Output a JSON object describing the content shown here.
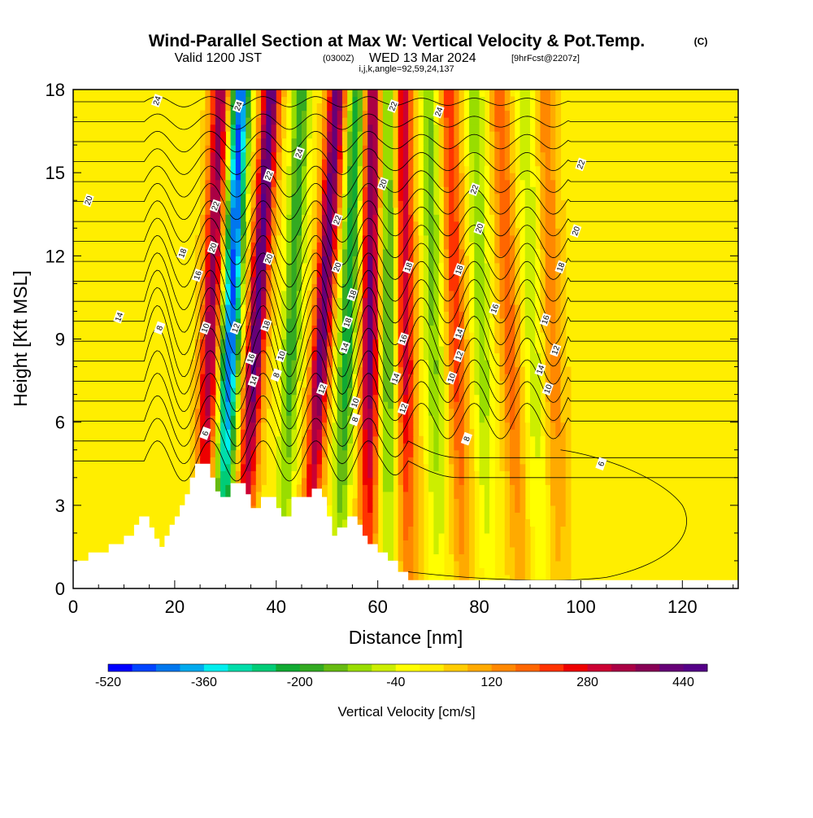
{
  "header": {
    "title": "Wind-Parallel Section at Max W: Vertical Velocity & Pot.Temp.",
    "title_mark": "(C)",
    "valid_prefix": "Valid 1200 JST",
    "valid_utc": "(0300Z)",
    "valid_date": "WED 13 Mar 2024",
    "forecast": "[9hrFcst@2207z]",
    "indices": "i,j,k,angle=92,59,24,137"
  },
  "chart_data": {
    "type": "heatmap",
    "xlabel": "Distance [nm]",
    "ylabel": "Height [Kft MSL]",
    "xlim": [
      0,
      131
    ],
    "ylim": [
      0,
      18
    ],
    "x_ticks": [
      0,
      20,
      40,
      60,
      80,
      100,
      120
    ],
    "y_ticks": [
      0,
      3,
      6,
      9,
      12,
      15,
      18
    ],
    "grid": false,
    "colorbar": {
      "label": "Vertical Velocity [cm/s]",
      "min": -520,
      "max": 480,
      "step": 40,
      "tick_labels": [
        "-520",
        "-360",
        "-200",
        "-40",
        "120",
        "280",
        "440"
      ],
      "colors": [
        "#0000ff",
        "#0044ff",
        "#0077ee",
        "#00aaee",
        "#00eeee",
        "#00ddaa",
        "#00cc77",
        "#11aa33",
        "#33aa22",
        "#66bb11",
        "#99dd00",
        "#ccee00",
        "#ffff00",
        "#ffee00",
        "#ffcc00",
        "#ffaa00",
        "#ff8800",
        "#ff6600",
        "#ff3300",
        "#ee0000",
        "#cc0033",
        "#aa0044",
        "#880055",
        "#660077",
        "#550088"
      ]
    },
    "terrain_kft": [
      [
        0,
        1.0
      ],
      [
        3,
        1.0
      ],
      [
        3,
        1.3
      ],
      [
        7,
        1.3
      ],
      [
        7,
        1.6
      ],
      [
        10,
        1.6
      ],
      [
        10,
        1.9
      ],
      [
        12,
        1.9
      ],
      [
        12,
        2.3
      ],
      [
        13,
        2.3
      ],
      [
        13,
        2.6
      ],
      [
        14,
        2.6
      ],
      [
        15,
        2.6
      ],
      [
        15,
        2.2
      ],
      [
        16,
        2.2
      ],
      [
        16,
        1.8
      ],
      [
        17,
        1.8
      ],
      [
        17,
        1.5
      ],
      [
        18,
        1.5
      ],
      [
        18,
        1.9
      ],
      [
        19,
        1.9
      ],
      [
        19,
        2.3
      ],
      [
        20,
        2.3
      ],
      [
        20,
        2.6
      ],
      [
        21,
        2.6
      ],
      [
        21,
        3.0
      ],
      [
        22,
        3.0
      ],
      [
        22,
        3.4
      ],
      [
        23,
        3.4
      ],
      [
        23,
        4.0
      ],
      [
        24,
        4.0
      ],
      [
        24,
        4.5
      ],
      [
        27,
        4.5
      ],
      [
        27,
        4.0
      ],
      [
        28,
        4.0
      ],
      [
        28,
        3.5
      ],
      [
        29,
        3.5
      ],
      [
        29,
        3.3
      ],
      [
        31,
        3.3
      ],
      [
        31,
        3.8
      ],
      [
        34,
        3.8
      ],
      [
        34,
        3.4
      ],
      [
        35,
        3.4
      ],
      [
        35,
        2.9
      ],
      [
        37,
        2.9
      ],
      [
        37,
        3.3
      ],
      [
        40,
        3.3
      ],
      [
        40,
        2.9
      ],
      [
        41,
        2.9
      ],
      [
        41,
        2.6
      ],
      [
        43,
        2.6
      ],
      [
        43,
        3.3
      ],
      [
        47,
        3.3
      ],
      [
        47,
        3.6
      ],
      [
        49,
        3.6
      ],
      [
        49,
        3.3
      ],
      [
        50,
        3.3
      ],
      [
        50,
        2.6
      ],
      [
        51,
        2.6
      ],
      [
        51,
        1.9
      ],
      [
        52,
        1.9
      ],
      [
        52,
        2.2
      ],
      [
        54,
        2.2
      ],
      [
        54,
        2.6
      ],
      [
        56,
        2.6
      ],
      [
        56,
        2.3
      ],
      [
        57,
        2.3
      ],
      [
        57,
        1.9
      ],
      [
        58,
        1.9
      ],
      [
        58,
        1.6
      ],
      [
        60,
        1.6
      ],
      [
        60,
        1.3
      ],
      [
        62,
        1.3
      ],
      [
        62,
        1.0
      ],
      [
        64,
        1.0
      ],
      [
        64,
        0.6
      ],
      [
        66,
        0.6
      ],
      [
        66,
        0.3
      ],
      [
        131,
        0.3
      ],
      [
        131,
        0
      ]
    ],
    "updraft_centers": [
      {
        "x_at_0": 25,
        "x_at_18": 29,
        "w": 340
      },
      {
        "x_at_0": 33,
        "x_at_18": 39,
        "w": 420
      },
      {
        "x_at_0": 46,
        "x_at_18": 52,
        "w": 400
      },
      {
        "x_at_0": 58,
        "x_at_18": 59,
        "w": 380
      },
      {
        "x_at_0": 66,
        "x_at_18": 65,
        "w": 280
      },
      {
        "x_at_0": 77,
        "x_at_18": 74,
        "w": 200
      },
      {
        "x_at_0": 88,
        "x_at_18": 84,
        "w": 160
      },
      {
        "x_at_0": 96,
        "x_at_18": 93,
        "w": 120
      }
    ],
    "downdraft_centers": [
      {
        "x_at_0": 29,
        "x_at_18": 33,
        "w": -480
      },
      {
        "x_at_0": 41,
        "x_at_18": 45,
        "w": -220
      },
      {
        "x_at_0": 52,
        "x_at_18": 56,
        "w": -260
      },
      {
        "x_at_0": 62,
        "x_at_18": 62,
        "w": -200
      },
      {
        "x_at_0": 72,
        "x_at_18": 70,
        "w": -160
      },
      {
        "x_at_0": 82,
        "x_at_18": 79,
        "w": -140
      },
      {
        "x_at_0": 92,
        "x_at_18": 89,
        "w": -100
      }
    ],
    "contour_labels": [
      {
        "text": "24",
        "x": 16.5,
        "y": 17.6
      },
      {
        "text": "24",
        "x": 32.5,
        "y": 17.4
      },
      {
        "text": "24",
        "x": 44.5,
        "y": 15.7
      },
      {
        "text": "24",
        "x": 72,
        "y": 17.2
      },
      {
        "text": "22",
        "x": 63,
        "y": 17.4
      },
      {
        "text": "22",
        "x": 38.5,
        "y": 14.9
      },
      {
        "text": "22",
        "x": 28,
        "y": 13.8
      },
      {
        "text": "22",
        "x": 52,
        "y": 13.3
      },
      {
        "text": "22",
        "x": 79,
        "y": 14.4
      },
      {
        "text": "22",
        "x": 100,
        "y": 15.3
      },
      {
        "text": "20",
        "x": 3,
        "y": 14.0
      },
      {
        "text": "20",
        "x": 61,
        "y": 14.6
      },
      {
        "text": "20",
        "x": 80,
        "y": 13.0
      },
      {
        "text": "20",
        "x": 99,
        "y": 12.9
      },
      {
        "text": "20",
        "x": 27.5,
        "y": 12.3
      },
      {
        "text": "20",
        "x": 38.5,
        "y": 11.9
      },
      {
        "text": "20",
        "x": 52,
        "y": 11.6
      },
      {
        "text": "18",
        "x": 21.5,
        "y": 12.1
      },
      {
        "text": "18",
        "x": 55,
        "y": 10.6
      },
      {
        "text": "18",
        "x": 66,
        "y": 11.6
      },
      {
        "text": "18",
        "x": 76,
        "y": 11.5
      },
      {
        "text": "18",
        "x": 38,
        "y": 9.5
      },
      {
        "text": "18",
        "x": 54,
        "y": 9.6
      },
      {
        "text": "18",
        "x": 96,
        "y": 11.6
      },
      {
        "text": "16",
        "x": 24.5,
        "y": 11.3
      },
      {
        "text": "16",
        "x": 83,
        "y": 10.1
      },
      {
        "text": "16",
        "x": 93,
        "y": 9.7
      },
      {
        "text": "16",
        "x": 65,
        "y": 9.0
      },
      {
        "text": "16",
        "x": 35,
        "y": 8.3
      },
      {
        "text": "14",
        "x": 9,
        "y": 9.8
      },
      {
        "text": "14",
        "x": 53.5,
        "y": 8.7
      },
      {
        "text": "14",
        "x": 76,
        "y": 9.2
      },
      {
        "text": "14",
        "x": 63.5,
        "y": 7.6
      },
      {
        "text": "14",
        "x": 92,
        "y": 7.9
      },
      {
        "text": "14",
        "x": 35.5,
        "y": 7.5
      },
      {
        "text": "12",
        "x": 32,
        "y": 9.4
      },
      {
        "text": "12",
        "x": 76,
        "y": 8.4
      },
      {
        "text": "12",
        "x": 95,
        "y": 8.6
      },
      {
        "text": "12",
        "x": 49,
        "y": 7.2
      },
      {
        "text": "12",
        "x": 65,
        "y": 6.5
      },
      {
        "text": "10",
        "x": 26,
        "y": 9.4
      },
      {
        "text": "10",
        "x": 41,
        "y": 8.4
      },
      {
        "text": "10",
        "x": 74.5,
        "y": 7.6
      },
      {
        "text": "10",
        "x": 93.5,
        "y": 7.2
      },
      {
        "text": "10",
        "x": 55.5,
        "y": 6.7
      },
      {
        "text": "8",
        "x": 17,
        "y": 9.4
      },
      {
        "text": "8",
        "x": 40,
        "y": 7.7
      },
      {
        "text": "8",
        "x": 55.5,
        "y": 6.1
      },
      {
        "text": "8",
        "x": 77.5,
        "y": 5.4
      },
      {
        "text": "6",
        "x": 26,
        "y": 5.6
      },
      {
        "text": "6",
        "x": 104,
        "y": 4.5
      }
    ]
  }
}
